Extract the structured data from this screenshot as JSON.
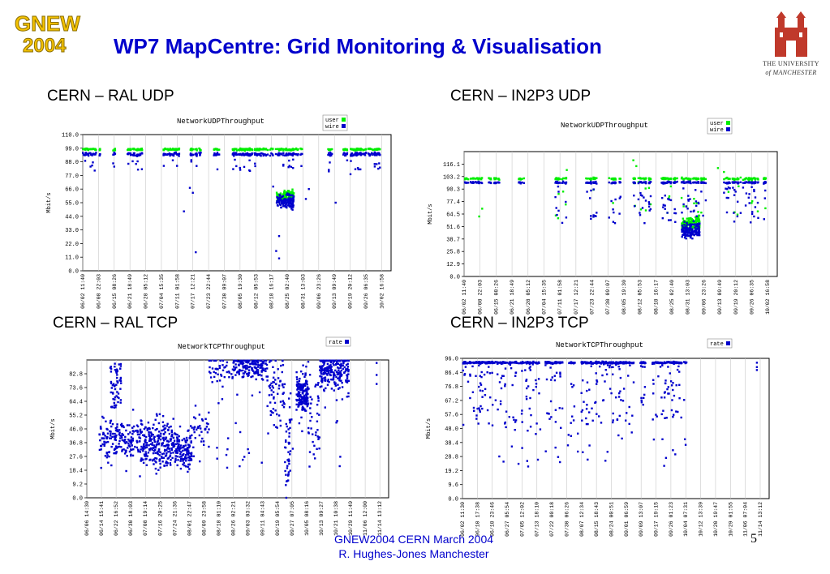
{
  "header": {
    "logo_line1": "GNEW",
    "logo_line2": "2004",
    "title": "WP7 MapCentre: Grid Monitoring & Visualisation",
    "university_line1": "THE UNIVERSITY",
    "university_line2": "of MANCHESTER"
  },
  "colors": {
    "title": "#0000cc",
    "wire": "#0000cc",
    "user": "#00ee00",
    "rate": "#0000cc"
  },
  "panels": [
    {
      "heading": "CERN – RAL UDP"
    },
    {
      "heading": "CERN – IN2P3 UDP"
    },
    {
      "heading": "CERN – RAL TCP"
    },
    {
      "heading": "CERN – IN2P3 TCP"
    }
  ],
  "chart_data": [
    {
      "type": "scatter",
      "title": "NetworkUDPThroughput",
      "ylabel": "Mbit/s",
      "ylim": [
        0,
        110
      ],
      "y_ticks": [
        "0.0",
        "11.0",
        "22.0",
        "33.0",
        "44.0",
        "55.0",
        "66.0",
        "77.0",
        "88.0",
        "99.0",
        "110.0"
      ],
      "x_ticks": [
        "06/02 11:40",
        "06/08 22:03",
        "06/15 08:26",
        "06/21 18:49",
        "06/28 05:12",
        "07/04 15:35",
        "07/11 01:58",
        "07/17 12:21",
        "07/23 22:44",
        "07/30 09:07",
        "08/05 19:30",
        "08/12 05:53",
        "08/18 16:17",
        "08/25 02:40",
        "08/31 13:03",
        "09/06 23:26",
        "09/13 09:49",
        "09/19 20:12",
        "09/26 06:35",
        "10/02 16:58"
      ],
      "legend": [
        "user",
        "wire"
      ],
      "series": [
        {
          "name": "user",
          "summary": "mostly 95-100 with dips; cluster around 55-62 near 09/13"
        },
        {
          "name": "wire",
          "summary": "mostly 90-96 with dips; cluster around 50-60 near 09/13"
        }
      ]
    },
    {
      "type": "scatter",
      "title": "NetworkUDPThroughput",
      "ylabel": "Mbit/s",
      "ylim": [
        0,
        129
      ],
      "y_ticks": [
        "0.0",
        "12.9",
        "25.8",
        "38.7",
        "51.6",
        "64.5",
        "77.4",
        "90.3",
        "103.2",
        "116.1"
      ],
      "x_ticks": [
        "06/02 11:40",
        "06/08 22:03",
        "06/15 08:26",
        "06/21 18:49",
        "06/28 05:12",
        "07/04 15:35",
        "07/11 01:58",
        "07/17 12:21",
        "07/23 22:44",
        "07/30 09:07",
        "08/05 19:30",
        "08/12 05:53",
        "08/18 16:17",
        "08/25 02:40",
        "08/31 13:03",
        "09/06 23:26",
        "09/13 09:49",
        "09/19 20:12",
        "09/26 06:35",
        "10/02 16:58"
      ],
      "legend": [
        "user",
        "wire"
      ],
      "series": [
        {
          "name": "user",
          "summary": "mostly ~100 with occasional peaks to 120"
        },
        {
          "name": "wire",
          "summary": "mostly ~96 with many dips to 50-90; cluster 35-60 near 09/06"
        }
      ]
    },
    {
      "type": "scatter",
      "title": "NetworkTCPThroughput",
      "ylabel": "Mbit/s",
      "ylim": [
        0,
        92
      ],
      "y_ticks": [
        "0.0",
        "9.2",
        "18.4",
        "27.6",
        "36.8",
        "46.0",
        "55.2",
        "64.4",
        "73.6",
        "82.8"
      ],
      "x_ticks": [
        "06/06 14:30",
        "06/14 15:41",
        "06/22 16:52",
        "06/30 18:03",
        "07/08 19:14",
        "07/16 20:25",
        "07/24 21:36",
        "08/01 22:47",
        "08/09 23:58",
        "08/18 01:10",
        "08/26 02:21",
        "09/03 03:32",
        "09/11 04:43",
        "09/19 05:54",
        "09/27 07:05",
        "10/05 08:16",
        "10/13 09:27",
        "10/21 10:38",
        "10/29 11:49",
        "11/06 12:00",
        "11/14 13:12"
      ],
      "legend": [
        "rate"
      ],
      "series": [
        {
          "name": "rate",
          "summary": "dense clusters 20-55 in June-July; 60-92 in August-October with scattered lows"
        }
      ]
    },
    {
      "type": "scatter",
      "title": "NetworkTCPThroughput",
      "ylabel": "Mbit/s",
      "ylim": [
        0,
        96
      ],
      "y_ticks": [
        "0.0",
        "9.6",
        "19.2",
        "28.8",
        "38.4",
        "48.0",
        "57.6",
        "67.2",
        "76.8",
        "86.4",
        "96.0"
      ],
      "x_ticks": [
        "06/02 11:30",
        "06/10 17:38",
        "06/18 23:46",
        "06/27 05:54",
        "07/05 12:02",
        "07/13 18:10",
        "07/22 00:18",
        "07/30 06:26",
        "08/07 12:34",
        "08/15 18:43",
        "08/24 00:51",
        "09/01 06:59",
        "09/09 13:07",
        "09/17 19:15",
        "09/26 01:23",
        "10/04 07:31",
        "10/12 13:39",
        "10/20 19:47",
        "10/29 01:55",
        "11/06 07:04",
        "11/14 13:12"
      ],
      "legend": [
        "rate"
      ],
      "series": [
        {
          "name": "rate",
          "summary": "mostly 90-94 with frequent dips to 40-80 from June to early October"
        }
      ]
    }
  ],
  "footer": {
    "line1": "GNEW2004 CERN March 2004",
    "line2": "R. Hughes-Jones  Manchester"
  },
  "page_number": "5"
}
